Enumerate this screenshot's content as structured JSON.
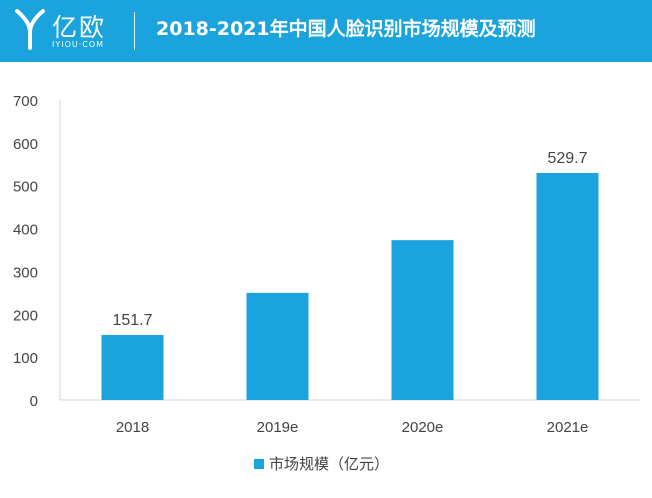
{
  "header": {
    "logo_name": "亿欧",
    "logo_sub": "IYIOU·COM",
    "title": "2018-2021年中国人脸识别市场规模及预测",
    "background_color": "#1aa3dc"
  },
  "chart_data": {
    "type": "bar",
    "title": "2018-2021年中国人脸识别市场规模及预测",
    "categories": [
      "2018",
      "2019e",
      "2020e",
      "2021e"
    ],
    "series": [
      {
        "name": "市场规模（亿元）",
        "values": [
          151.7,
          250,
          373,
          529.7
        ],
        "data_labels": [
          "151.7",
          "",
          "",
          "529.7"
        ],
        "color": "#1aa3dc"
      }
    ],
    "ylim": [
      0,
      700
    ],
    "yticks": [
      0,
      100,
      200,
      300,
      400,
      500,
      600,
      700
    ],
    "grid": false,
    "legend": "bottom-center"
  }
}
